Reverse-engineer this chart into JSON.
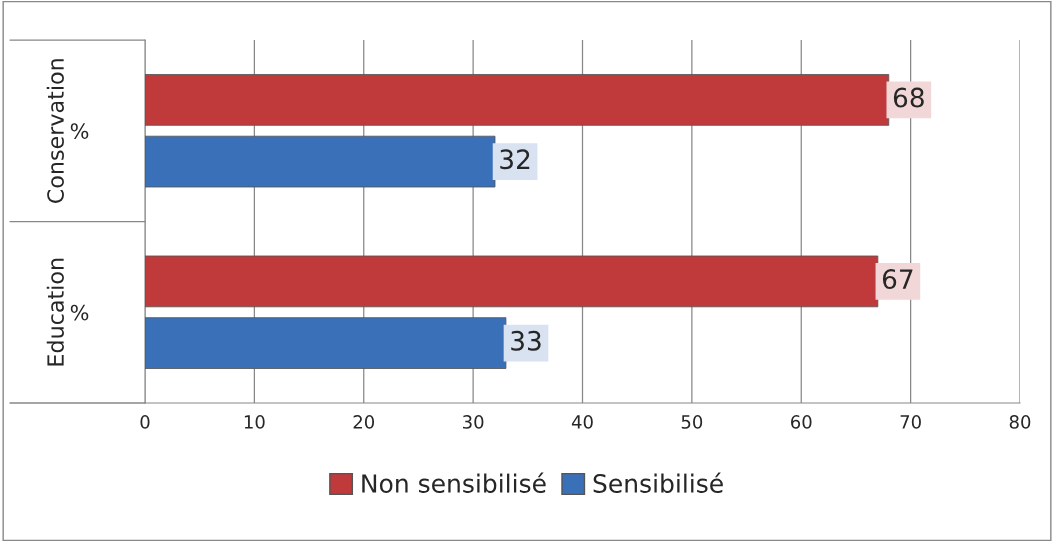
{
  "chart_data": {
    "type": "bar",
    "orientation": "horizontal",
    "categories": [
      "%",
      "%"
    ],
    "annotations": [
      "Conservation",
      "Education"
    ],
    "series": [
      {
        "name": "Non sensibilisé",
        "color": "#c0393b",
        "values": [
          68,
          67
        ]
      },
      {
        "name": "Sensibilisé",
        "color": "#3a70b8",
        "values": [
          32,
          33
        ]
      }
    ],
    "xlim": [
      0,
      80
    ],
    "xticks": [
      0,
      10,
      20,
      30,
      40,
      50,
      60,
      70,
      80
    ],
    "grid": "x",
    "legend": "bottom",
    "data_labels": true
  }
}
